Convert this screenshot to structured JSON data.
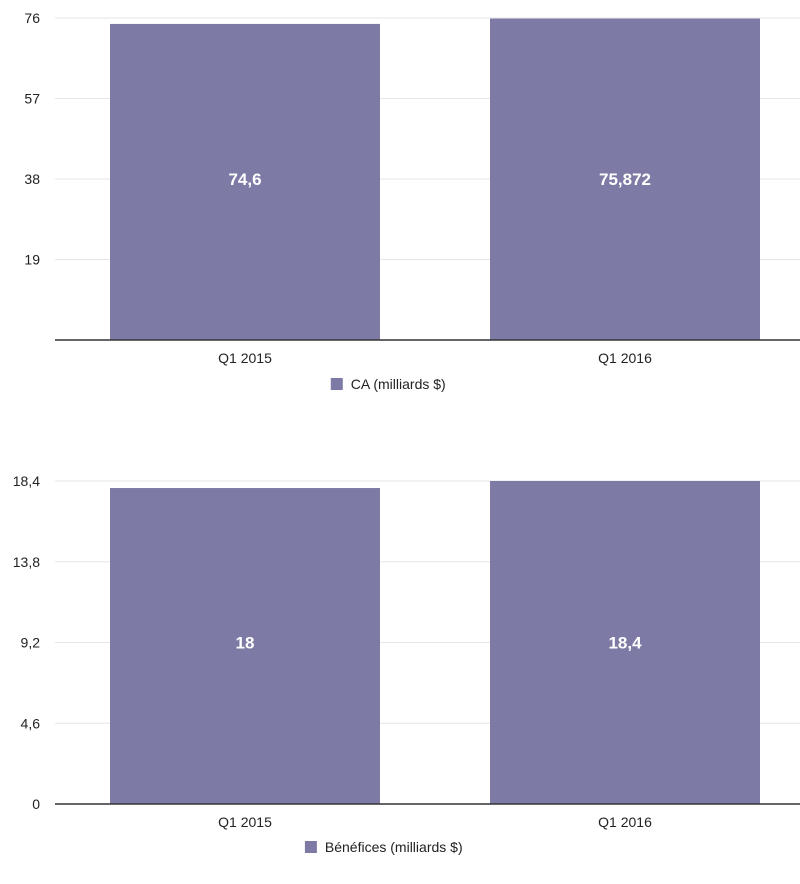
{
  "colors": {
    "bar": "#7d7ba5",
    "grid": "#e6e6e6",
    "axis": "#333333"
  },
  "chart_data": [
    {
      "type": "bar",
      "title": "",
      "xlabel": "",
      "ylabel": "",
      "categories": [
        "Q1 2015",
        "Q1 2016"
      ],
      "series": [
        {
          "name": "CA (milliards $)",
          "values": [
            74.6,
            75.872
          ]
        }
      ],
      "data_labels": [
        "74,6",
        "75,872"
      ],
      "yticks": [
        "19",
        "38",
        "57",
        "76"
      ],
      "ytick_values": [
        19,
        38,
        57,
        76
      ],
      "ylim": [
        0,
        76
      ],
      "grid": true,
      "legend": "bottom-center"
    },
    {
      "type": "bar",
      "title": "",
      "xlabel": "",
      "ylabel": "",
      "categories": [
        "Q1 2015",
        "Q1 2016"
      ],
      "series": [
        {
          "name": "Bénéfices (milliards $)",
          "values": [
            18,
            18.4
          ]
        }
      ],
      "data_labels": [
        "18",
        "18,4"
      ],
      "yticks": [
        "0",
        "4,6",
        "9,2",
        "13,8",
        "18,4"
      ],
      "ytick_values": [
        0,
        4.6,
        9.2,
        13.8,
        18.4
      ],
      "ylim": [
        0,
        18.4
      ],
      "grid": true,
      "legend": "bottom-center"
    }
  ]
}
